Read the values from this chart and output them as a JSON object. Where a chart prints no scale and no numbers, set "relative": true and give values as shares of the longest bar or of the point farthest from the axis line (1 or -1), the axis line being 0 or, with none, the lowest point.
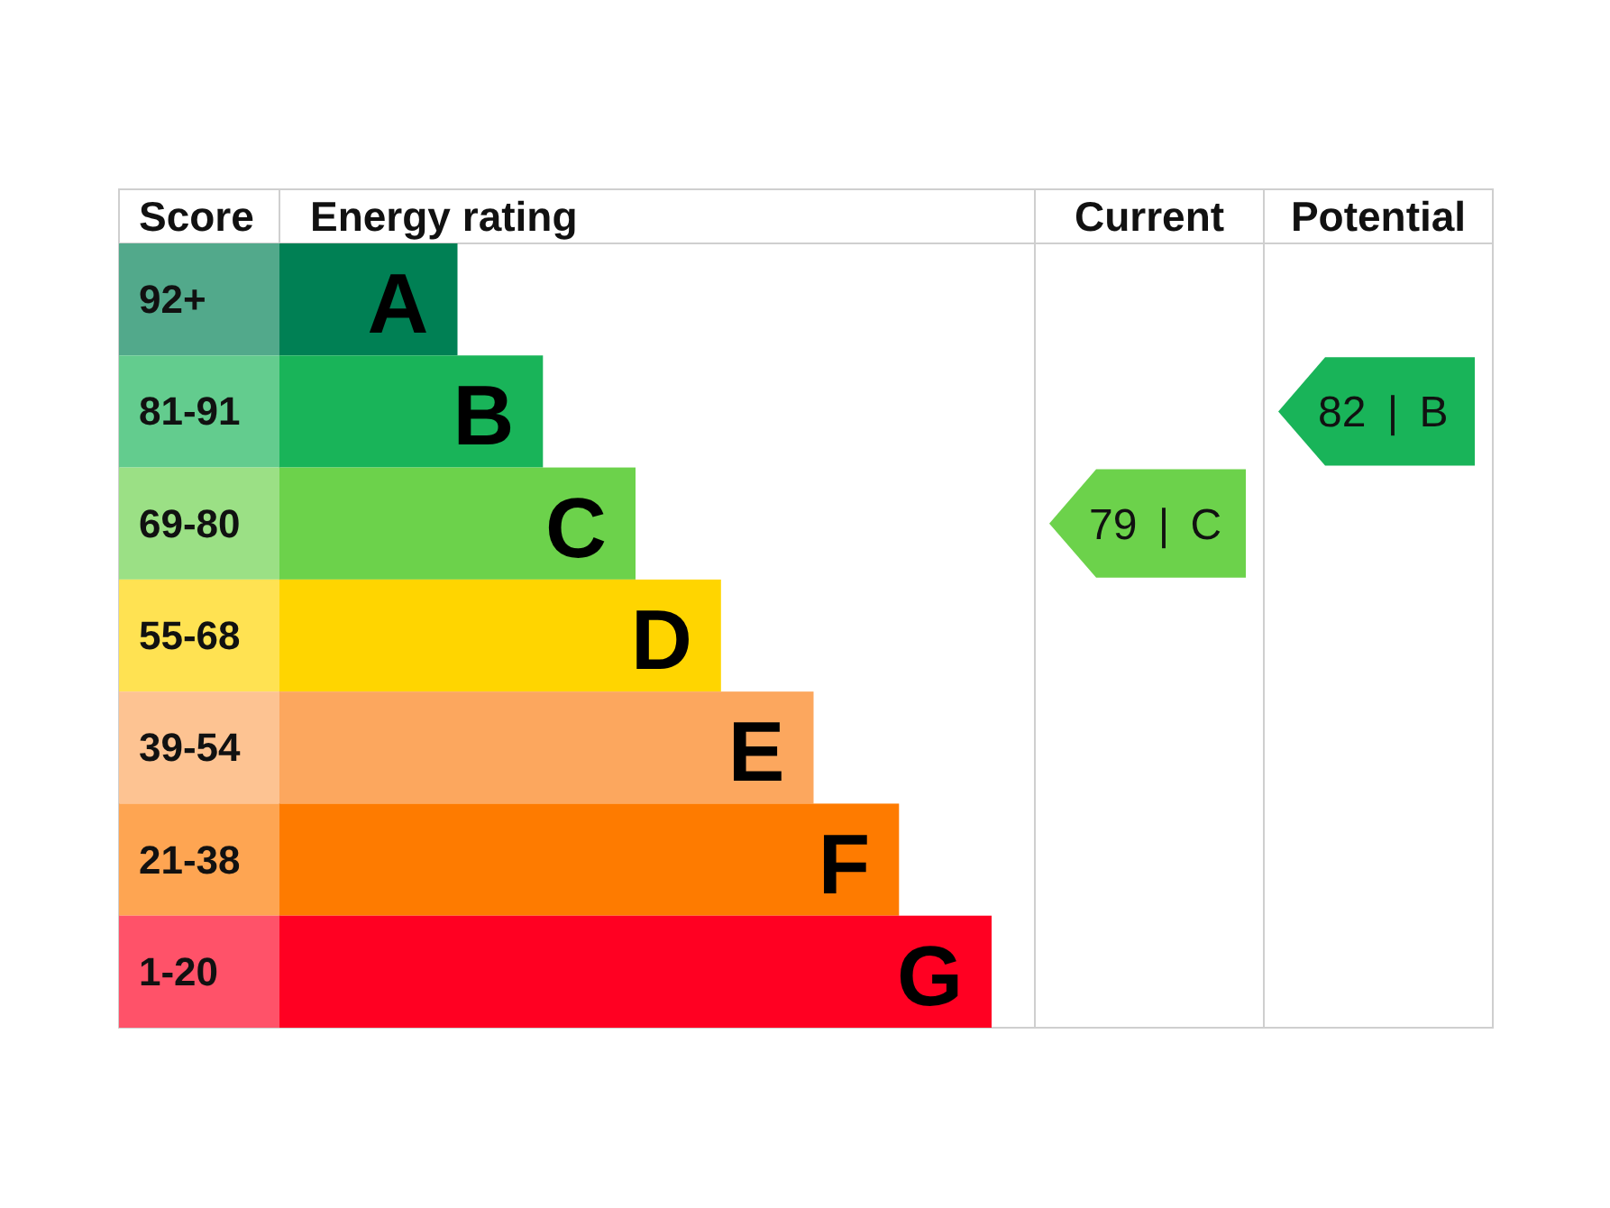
{
  "chart_data": {
    "type": "bar",
    "orientation": "horizontal",
    "relative": true,
    "xlabel": "Energy rating",
    "ylabel": "Score",
    "tick_labels": "y",
    "categories": [
      "92+",
      "81-91",
      "69-80",
      "55-68",
      "39-54",
      "21-38",
      "1-20"
    ],
    "values": [
      0.25,
      0.37,
      0.5,
      0.62,
      0.75,
      0.87,
      1
    ],
    "colors": [
      "#008054",
      "#19b459",
      "#6cd24b",
      "#ffd500",
      "#fca75e",
      "#fe7b00",
      "#ff0022"
    ],
    "annotations": [
      "Current",
      "Potential",
      "79 | C",
      "82 | B",
      {
        "text": "A",
        "x": 0.25,
        "y": "92+"
      },
      {
        "text": "B",
        "x": 0.37,
        "y": "81-91"
      },
      {
        "text": "C",
        "x": 0.5,
        "y": "69-80"
      },
      {
        "text": "D",
        "x": 0.62,
        "y": "55-68"
      },
      {
        "text": "E",
        "x": 0.75,
        "y": "39-54"
      },
      {
        "text": "F",
        "x": 0.87,
        "y": "21-38"
      },
      {
        "text": "G",
        "x": 1,
        "y": "1-20"
      }
    ]
  }
}
